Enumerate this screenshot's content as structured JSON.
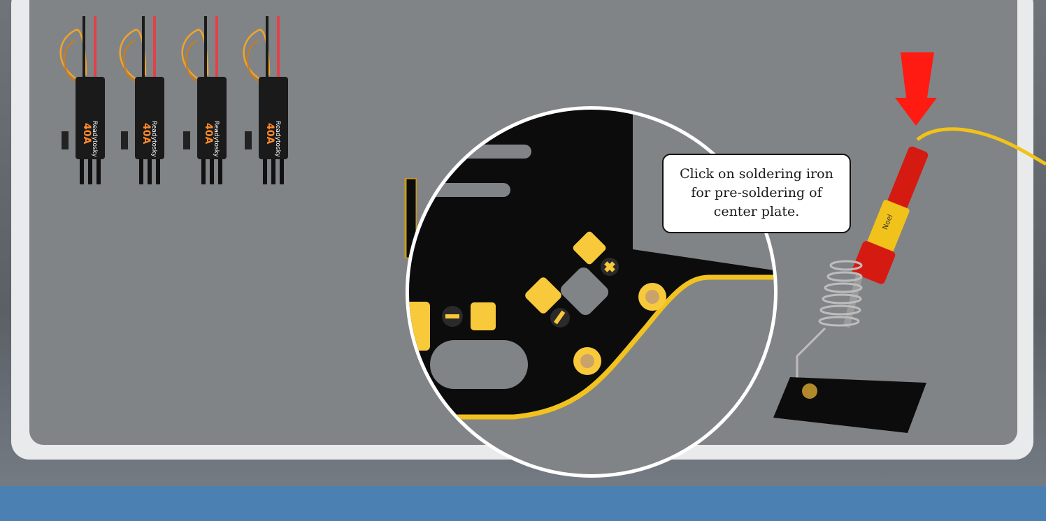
{
  "tooltip": {
    "line1": "Click on soldering iron",
    "line2": "for pre-soldering of",
    "line3": "center plate."
  },
  "esc": {
    "brand": "Readytosky",
    "rating": "40A",
    "count": 4
  },
  "soldering_iron": {
    "brand": "Noel"
  },
  "colors": {
    "stage": "#818486",
    "frame": "#e9eaeb",
    "bottom_bar": "#4a80b2",
    "arrow": "#ff1a12",
    "pcb": "#0c0c0c",
    "pcb_trace": "#f2c21e",
    "pad": "#f8c93a"
  },
  "icons": [
    "down-arrow-icon",
    "plus-icon",
    "minus-icon"
  ]
}
